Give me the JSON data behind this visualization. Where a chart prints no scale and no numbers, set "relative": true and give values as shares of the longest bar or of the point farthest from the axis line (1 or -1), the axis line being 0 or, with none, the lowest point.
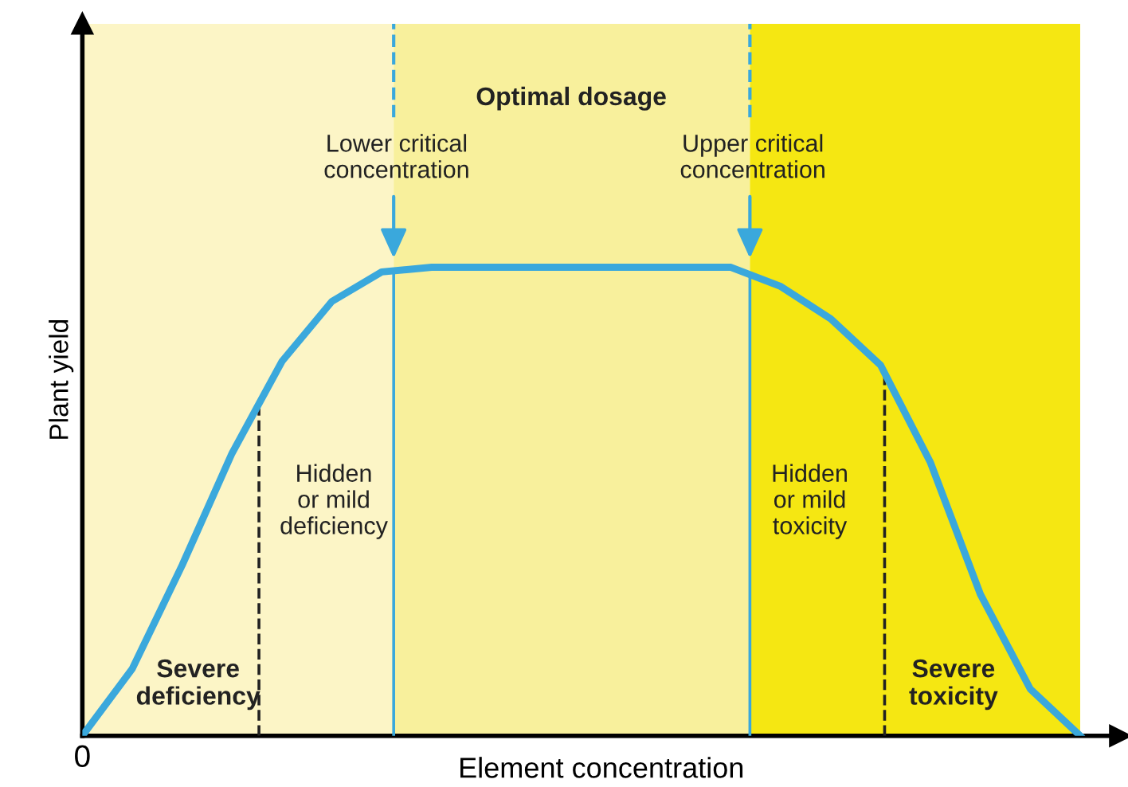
{
  "chart_data": {
    "type": "line",
    "relative": true,
    "xlabel": "Element concentration",
    "ylabel": "Plant yield",
    "categories": [
      null,
      null,
      null,
      null,
      null,
      null,
      null,
      null,
      null,
      null,
      null,
      null,
      null,
      null,
      null,
      null,
      null,
      null,
      null,
      null,
      null
    ],
    "series": [
      {
        "color": "#3aa8dc",
        "values": [
          0,
          0.143,
          0.364,
          0.603,
          0.799,
          0.927,
          0.99,
          1.0,
          1.0,
          1.0,
          1.0,
          1.0,
          1.0,
          1.0,
          0.959,
          0.89,
          0.791,
          0.583,
          0.302,
          0.1,
          0
        ]
      }
    ],
    "annotations": [
      "Optimal dosage",
      "0",
      "Lower critical\nconcentration",
      "Upper critical\nconcentration",
      "Hidden\nor mild\ndeficiency",
      "Hidden\nor mild\ntoxicity",
      "Severe\ndeficiency",
      "Severe\ntoxicity"
    ],
    "marker": "none",
    "line_style": "solid"
  }
}
